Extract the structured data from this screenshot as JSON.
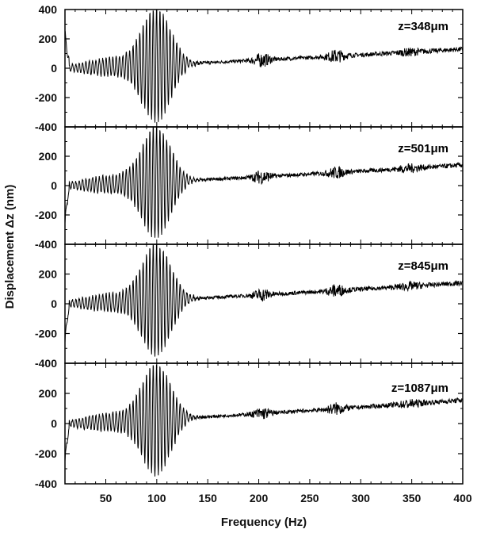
{
  "chart_data": {
    "type": "line",
    "xlabel": "Frequency (Hz)",
    "ylabel": "Displacement Δz (nm)",
    "xlim": [
      10,
      400
    ],
    "ylim": [
      -400,
      400
    ],
    "x_ticks": [
      50,
      100,
      150,
      200,
      250,
      300,
      350,
      400
    ],
    "y_tick_labels": [
      "400",
      "200",
      "0",
      "-200",
      "-400"
    ],
    "grid": false,
    "panels": [
      {
        "label": "z=348μm",
        "peaks": [
          {
            "freq": 100,
            "amplitude": 380
          },
          {
            "freq": 203,
            "amplitude": 45
          },
          {
            "freq": 276,
            "amplitude": 40
          },
          {
            "freq": 348,
            "amplitude": 18
          }
        ],
        "baseline_0hz": 0,
        "baseline_400hz": 130
      },
      {
        "label": "z=501μm",
        "peaks": [
          {
            "freq": 100,
            "amplitude": 370
          },
          {
            "freq": 203,
            "amplitude": 45
          },
          {
            "freq": 276,
            "amplitude": 35
          },
          {
            "freq": 348,
            "amplitude": 20
          }
        ],
        "baseline_0hz": 0,
        "baseline_400hz": 140
      },
      {
        "label": "z=845μm",
        "peaks": [
          {
            "freq": 100,
            "amplitude": 370
          },
          {
            "freq": 203,
            "amplitude": 40
          },
          {
            "freq": 276,
            "amplitude": 38
          },
          {
            "freq": 348,
            "amplitude": 18
          }
        ],
        "baseline_0hz": 0,
        "baseline_400hz": 140
      },
      {
        "label": "z=1087μm",
        "peaks": [
          {
            "freq": 100,
            "amplitude": 360
          },
          {
            "freq": 203,
            "amplitude": 35
          },
          {
            "freq": 276,
            "amplitude": 35
          },
          {
            "freq": 348,
            "amplitude": 20
          }
        ],
        "baseline_0hz": 0,
        "baseline_400hz": 155
      }
    ]
  }
}
